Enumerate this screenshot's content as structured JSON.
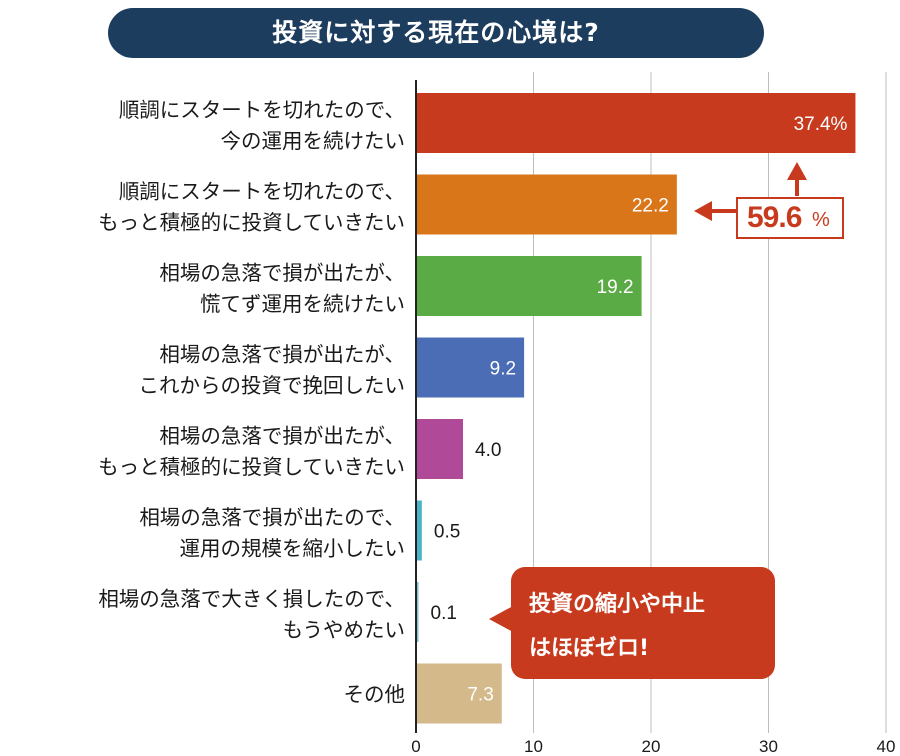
{
  "title": "投資に対する現在の心境は?",
  "chart_data": {
    "type": "bar",
    "orientation": "horizontal",
    "unit_label": "(%)",
    "xlim": [
      0,
      40
    ],
    "x_ticks": [
      "0",
      "10",
      "20",
      "30",
      "40"
    ],
    "grid": true,
    "categories": [
      [
        "順調にスタートを切れたので、",
        "今の運用を続けたい"
      ],
      [
        "順調にスタートを切れたので、",
        "もっと積極的に投資していきたい"
      ],
      [
        "相場の急落で損が出たが、",
        "慌てず運用を続けたい"
      ],
      [
        "相場の急落で損が出たが、",
        "これからの投資で挽回したい"
      ],
      [
        "相場の急落で損が出たが、",
        "もっと積極的に投資していきたい"
      ],
      [
        "相場の急落で損が出たので、",
        "運用の規模を縮小したい"
      ],
      [
        "相場の急落で大きく損したので、",
        "もうやめたい"
      ],
      [
        "その他"
      ]
    ],
    "values": [
      37.4,
      22.2,
      19.2,
      9.2,
      4.0,
      0.5,
      0.1,
      7.3
    ],
    "value_labels": [
      "37.4%",
      "22.2",
      "19.2",
      "9.2",
      "4.0",
      "0.5",
      "0.1",
      "7.3"
    ],
    "colors": [
      "#c73a1d",
      "#d9761a",
      "#5aaa45",
      "#4a6db5",
      "#b04a98",
      "#4fb3c8",
      "#7fc4d4",
      "#d4b98a"
    ],
    "annotations": {
      "sum_value": "59.6",
      "sum_unit": "%",
      "callout_lines": [
        "投資の縮小や中止",
        "はほぼゼロ!"
      ]
    }
  }
}
